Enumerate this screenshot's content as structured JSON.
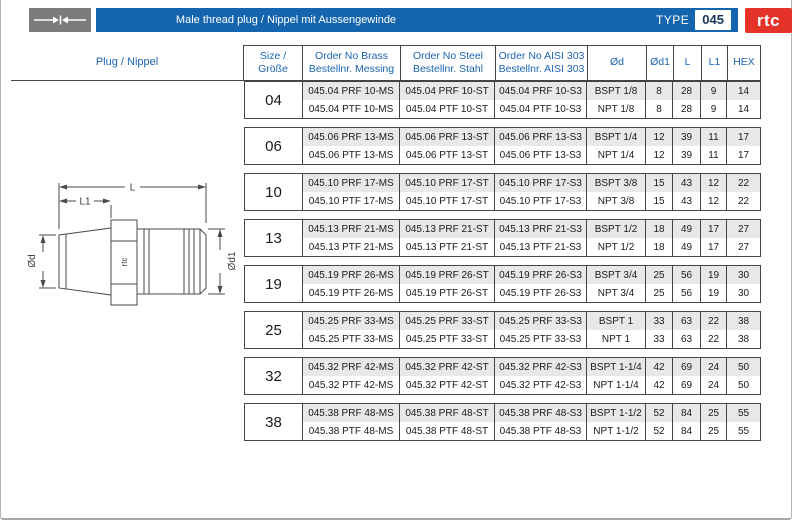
{
  "header": {
    "title": "Male thread plug / Nippel mit Aussengewinde",
    "type_label": "TYPE",
    "type_value": "045",
    "brand": "rtc",
    "icon": "coupling-arrows-icon"
  },
  "colors": {
    "bar_blue": "#1565ae",
    "header_text_blue": "#1b63b2",
    "brand_red": "#e6332a",
    "icon_gray": "#7b7b7b",
    "row_shading_gray": "#e8e8e8"
  },
  "table": {
    "plug_header": "Plug / Nippel",
    "columns": [
      {
        "line1": "Size / Größe",
        "line2": ""
      },
      {
        "line1": "Order No Brass",
        "line2": "Bestellnr. Messing"
      },
      {
        "line1": "Order No Steel",
        "line2": "Bestellnr. Stahl"
      },
      {
        "line1": "Order No AISI 303",
        "line2": "Bestellnr. AISI 303"
      },
      {
        "line1": "Ød",
        "line2": ""
      },
      {
        "line1": "Ød1",
        "line2": ""
      },
      {
        "line1": "L",
        "line2": ""
      },
      {
        "line1": "L1",
        "line2": ""
      },
      {
        "line1": "HEX",
        "line2": ""
      }
    ],
    "groups": [
      {
        "size": "04",
        "rows": [
          {
            "brass": "045.04 PRF 10-MS",
            "steel": "045.04 PRF 10-ST",
            "aisi": "045.04 PRF 10-S3",
            "od": "BSPT 1/8",
            "od1": "8",
            "l": "28",
            "l1": "9",
            "hex": "14"
          },
          {
            "brass": "045.04 PTF 10-MS",
            "steel": "045.04 PTF 10-ST",
            "aisi": "045.04 PTF 10-S3",
            "od": "NPT 1/8",
            "od1": "8",
            "l": "28",
            "l1": "9",
            "hex": "14"
          }
        ]
      },
      {
        "size": "06",
        "rows": [
          {
            "brass": "045.06 PRF 13-MS",
            "steel": "045.06 PRF 13-ST",
            "aisi": "045.06 PRF 13-S3",
            "od": "BSPT 1/4",
            "od1": "12",
            "l": "39",
            "l1": "11",
            "hex": "17"
          },
          {
            "brass": "045.06 PTF 13-MS",
            "steel": "045.06 PTF 13-ST",
            "aisi": "045.06 PTF 13-S3",
            "od": "NPT 1/4",
            "od1": "12",
            "l": "39",
            "l1": "11",
            "hex": "17"
          }
        ]
      },
      {
        "size": "10",
        "rows": [
          {
            "brass": "045.10 PRF 17-MS",
            "steel": "045.10 PRF 17-ST",
            "aisi": "045.10 PRF 17-S3",
            "od": "BSPT 3/8",
            "od1": "15",
            "l": "43",
            "l1": "12",
            "hex": "22"
          },
          {
            "brass": "045.10 PTF 17-MS",
            "steel": "045.10 PTF 17-ST",
            "aisi": "045.10 PTF 17-S3",
            "od": "NPT 3/8",
            "od1": "15",
            "l": "43",
            "l1": "12",
            "hex": "22"
          }
        ]
      },
      {
        "size": "13",
        "rows": [
          {
            "brass": "045.13 PRF 21-MS",
            "steel": "045.13 PRF 21-ST",
            "aisi": "045.13 PRF 21-S3",
            "od": "BSPT 1/2",
            "od1": "18",
            "l": "49",
            "l1": "17",
            "hex": "27"
          },
          {
            "brass": "045.13 PTF 21-MS",
            "steel": "045.13 PTF 21-ST",
            "aisi": "045.13 PTF 21-S3",
            "od": "NPT 1/2",
            "od1": "18",
            "l": "49",
            "l1": "17",
            "hex": "27"
          }
        ]
      },
      {
        "size": "19",
        "rows": [
          {
            "brass": "045.19 PRF 26-MS",
            "steel": "045.19 PRF 26-ST",
            "aisi": "045.19 PRF 26-S3",
            "od": "BSPT 3/4",
            "od1": "25",
            "l": "56",
            "l1": "19",
            "hex": "30"
          },
          {
            "brass": "045.19 PTF 26-MS",
            "steel": "045.19 PTF 26-ST",
            "aisi": "045.19 PTF 26-S3",
            "od": "NPT 3/4",
            "od1": "25",
            "l": "56",
            "l1": "19",
            "hex": "30"
          }
        ]
      },
      {
        "size": "25",
        "rows": [
          {
            "brass": "045.25 PRF 33-MS",
            "steel": "045.25 PRF 33-ST",
            "aisi": "045.25 PRF 33-S3",
            "od": "BSPT 1",
            "od1": "33",
            "l": "63",
            "l1": "22",
            "hex": "38"
          },
          {
            "brass": "045.25 PTF 33-MS",
            "steel": "045.25 PTF 33-ST",
            "aisi": "045.25 PTF 33-S3",
            "od": "NPT 1",
            "od1": "33",
            "l": "63",
            "l1": "22",
            "hex": "38"
          }
        ]
      },
      {
        "size": "32",
        "rows": [
          {
            "brass": "045.32 PRF 42-MS",
            "steel": "045.32 PRF 42-ST",
            "aisi": "045.32 PRF 42-S3",
            "od": "BSPT 1-1/4",
            "od1": "42",
            "l": "69",
            "l1": "24",
            "hex": "50"
          },
          {
            "brass": "045.32 PTF 42-MS",
            "steel": "045.32 PTF 42-ST",
            "aisi": "045.32 PTF 42-S3",
            "od": "NPT 1-1/4",
            "od1": "42",
            "l": "69",
            "l1": "24",
            "hex": "50"
          }
        ]
      },
      {
        "size": "38",
        "rows": [
          {
            "brass": "045.38 PRF 48-MS",
            "steel": "045.38 PRF 48-ST",
            "aisi": "045.38 PRF 48-S3",
            "od": "BSPT 1-1/2",
            "od1": "52",
            "l": "84",
            "l1": "25",
            "hex": "55"
          },
          {
            "brass": "045.38 PTF 48-MS",
            "steel": "045.38 PTF 48-ST",
            "aisi": "045.38 PTF 48-S3",
            "od": "NPT 1-1/2",
            "od1": "52",
            "l": "84",
            "l1": "25",
            "hex": "55"
          }
        ]
      }
    ]
  },
  "drawing": {
    "labels": {
      "length": "L",
      "thread_length": "L1",
      "thread_diameter": "Ød",
      "plug_diameter": "Ød1",
      "brand_mark": "rtc"
    }
  }
}
